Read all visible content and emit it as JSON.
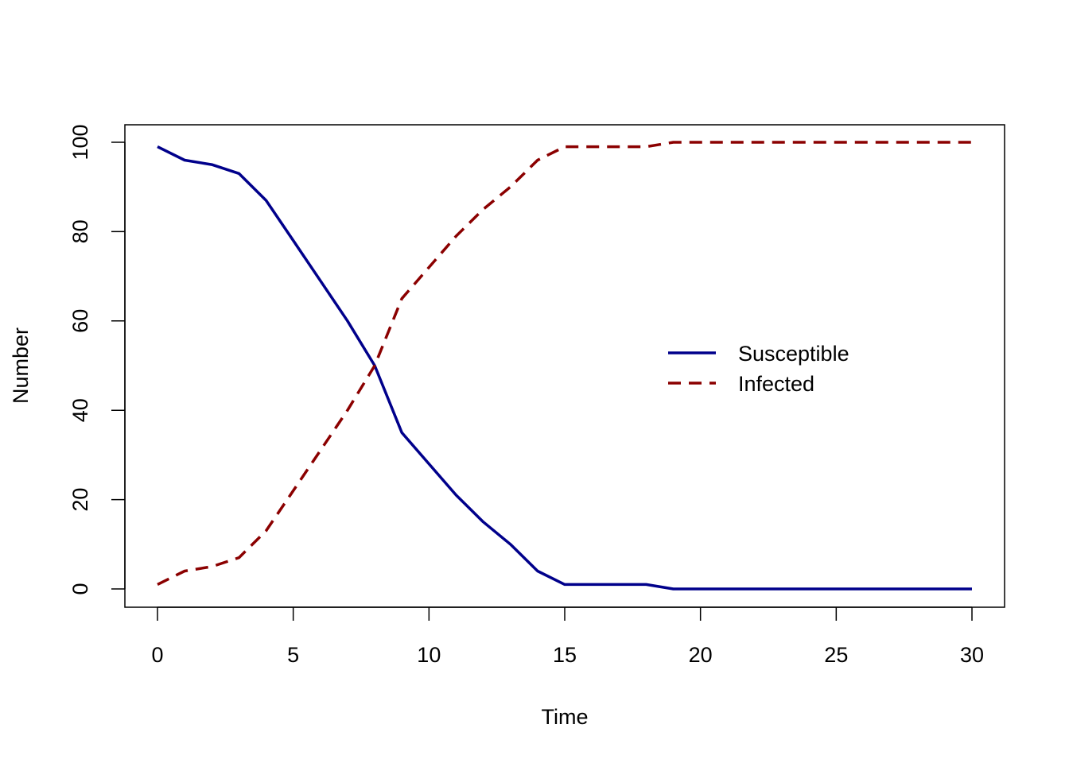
{
  "chart_data": {
    "type": "line",
    "title": "",
    "xlabel": "Time",
    "ylabel": "Number",
    "xlim": [
      0,
      30
    ],
    "ylim": [
      0,
      100
    ],
    "x_ticks": [
      0,
      5,
      10,
      15,
      20,
      25,
      30
    ],
    "y_ticks": [
      0,
      20,
      40,
      60,
      80,
      100
    ],
    "grid": false,
    "legend_position": "right",
    "x": [
      0,
      1,
      2,
      3,
      4,
      5,
      6,
      7,
      8,
      9,
      10,
      11,
      12,
      13,
      14,
      15,
      16,
      17,
      18,
      19,
      20,
      21,
      22,
      23,
      24,
      25,
      26,
      27,
      28,
      29,
      30
    ],
    "series": [
      {
        "name": "Susceptible",
        "color": "#00008B",
        "line_style": "solid",
        "values": [
          99,
          96,
          95,
          93,
          87,
          78,
          69,
          60,
          50,
          35,
          28,
          21,
          15,
          10,
          4,
          1,
          1,
          1,
          1,
          0,
          0,
          0,
          0,
          0,
          0,
          0,
          0,
          0,
          0,
          0,
          0
        ]
      },
      {
        "name": "Infected",
        "color": "#8B0000",
        "line_style": "dashed",
        "values": [
          1,
          4,
          5,
          7,
          13,
          22,
          31,
          40,
          50,
          65,
          72,
          79,
          85,
          90,
          96,
          99,
          99,
          99,
          99,
          100,
          100,
          100,
          100,
          100,
          100,
          100,
          100,
          100,
          100,
          100,
          100
        ]
      }
    ]
  }
}
